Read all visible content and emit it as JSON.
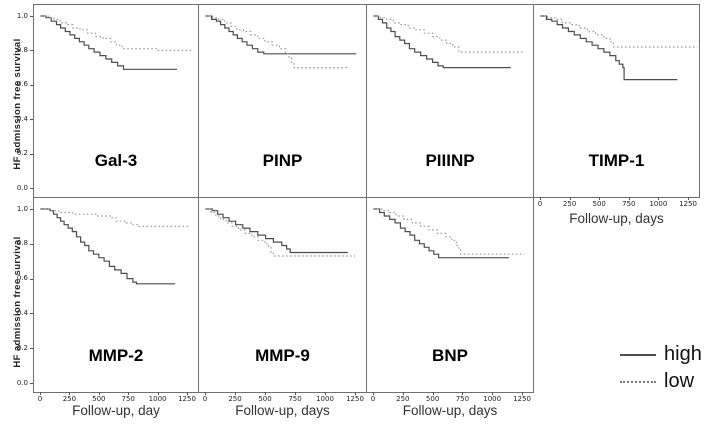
{
  "figure": {
    "ylabel": "HF admission free survival",
    "x_ticks": [
      0,
      250,
      500,
      750,
      1000,
      1250
    ],
    "y_ticks": [
      1.0,
      0.8,
      0.6,
      0.4,
      0.2,
      0.0
    ],
    "colors": {
      "high": "#4d4d4d",
      "low": "#9c9c9c",
      "panel_border": "#6f6f6f"
    },
    "legend": {
      "high_label": "high",
      "low_label": "low"
    }
  },
  "chart_data": [
    {
      "type": "line",
      "step": true,
      "title": "Gal-3",
      "xlim": [
        0,
        1340
      ],
      "ylim": [
        0,
        1
      ],
      "show_x_ticks": false,
      "show_y_ticks": true,
      "series": [
        {
          "name": "high",
          "style": "solid",
          "points": [
            [
              0,
              1.0
            ],
            [
              50,
              0.99
            ],
            [
              95,
              0.97
            ],
            [
              140,
              0.95
            ],
            [
              175,
              0.93
            ],
            [
              215,
              0.91
            ],
            [
              255,
              0.89
            ],
            [
              295,
              0.87
            ],
            [
              335,
              0.85
            ],
            [
              375,
              0.83
            ],
            [
              415,
              0.81
            ],
            [
              460,
              0.79
            ],
            [
              510,
              0.77
            ],
            [
              560,
              0.75
            ],
            [
              610,
              0.73
            ],
            [
              660,
              0.71
            ],
            [
              710,
              0.69
            ],
            [
              1165,
              0.69
            ]
          ]
        },
        {
          "name": "low",
          "style": "dotted",
          "points": [
            [
              0,
              1.0
            ],
            [
              70,
              0.99
            ],
            [
              120,
              0.98
            ],
            [
              170,
              0.96
            ],
            [
              225,
              0.95
            ],
            [
              280,
              0.93
            ],
            [
              340,
              0.92
            ],
            [
              405,
              0.9
            ],
            [
              470,
              0.88
            ],
            [
              535,
              0.87
            ],
            [
              600,
              0.85
            ],
            [
              650,
              0.83
            ],
            [
              700,
              0.81
            ],
            [
              1000,
              0.8
            ],
            [
              1300,
              0.8
            ]
          ]
        }
      ]
    },
    {
      "type": "line",
      "step": true,
      "title": "PINP",
      "xlim": [
        0,
        1340
      ],
      "ylim": [
        0,
        1
      ],
      "show_x_ticks": false,
      "show_y_ticks": false,
      "series": [
        {
          "name": "high",
          "style": "solid",
          "points": [
            [
              0,
              1.0
            ],
            [
              55,
              0.98
            ],
            [
              95,
              0.97
            ],
            [
              130,
              0.95
            ],
            [
              165,
              0.93
            ],
            [
              200,
              0.91
            ],
            [
              235,
              0.89
            ],
            [
              270,
              0.87
            ],
            [
              310,
              0.85
            ],
            [
              350,
              0.83
            ],
            [
              395,
              0.81
            ],
            [
              440,
              0.79
            ],
            [
              490,
              0.78
            ],
            [
              1260,
              0.78
            ]
          ]
        },
        {
          "name": "low",
          "style": "dotted",
          "points": [
            [
              0,
              1.0
            ],
            [
              65,
              0.99
            ],
            [
              115,
              0.98
            ],
            [
              165,
              0.96
            ],
            [
              215,
              0.94
            ],
            [
              265,
              0.92
            ],
            [
              320,
              0.91
            ],
            [
              380,
              0.89
            ],
            [
              440,
              0.87
            ],
            [
              500,
              0.85
            ],
            [
              560,
              0.83
            ],
            [
              620,
              0.81
            ],
            [
              670,
              0.78
            ],
            [
              700,
              0.76
            ],
            [
              720,
              0.73
            ],
            [
              740,
              0.7
            ],
            [
              1190,
              0.7
            ]
          ]
        }
      ]
    },
    {
      "type": "line",
      "step": true,
      "title": "PIIINP",
      "xlim": [
        0,
        1340
      ],
      "ylim": [
        0,
        1
      ],
      "show_x_ticks": false,
      "show_y_ticks": false,
      "series": [
        {
          "name": "high",
          "style": "solid",
          "points": [
            [
              0,
              1.0
            ],
            [
              45,
              0.98
            ],
            [
              80,
              0.96
            ],
            [
              115,
              0.93
            ],
            [
              150,
              0.91
            ],
            [
              185,
              0.88
            ],
            [
              225,
              0.86
            ],
            [
              265,
              0.84
            ],
            [
              305,
              0.81
            ],
            [
              350,
              0.79
            ],
            [
              400,
              0.77
            ],
            [
              450,
              0.75
            ],
            [
              500,
              0.73
            ],
            [
              545,
              0.71
            ],
            [
              590,
              0.7
            ],
            [
              1155,
              0.7
            ]
          ]
        },
        {
          "name": "low",
          "style": "dotted",
          "points": [
            [
              0,
              1.0
            ],
            [
              60,
              0.99
            ],
            [
              115,
              0.98
            ],
            [
              170,
              0.96
            ],
            [
              230,
              0.95
            ],
            [
              295,
              0.93
            ],
            [
              360,
              0.92
            ],
            [
              430,
              0.9
            ],
            [
              500,
              0.88
            ],
            [
              560,
              0.86
            ],
            [
              620,
              0.84
            ],
            [
              670,
              0.82
            ],
            [
              720,
              0.79
            ],
            [
              1260,
              0.79
            ]
          ]
        }
      ]
    },
    {
      "type": "line",
      "step": true,
      "title": "TIMP-1",
      "xlabel": "Follow-up, days",
      "xlim": [
        0,
        1340
      ],
      "ylim": [
        0,
        1
      ],
      "show_x_ticks": true,
      "show_y_ticks": false,
      "series": [
        {
          "name": "high",
          "style": "solid",
          "points": [
            [
              0,
              1.0
            ],
            [
              55,
              0.98
            ],
            [
              100,
              0.97
            ],
            [
              145,
              0.95
            ],
            [
              190,
              0.93
            ],
            [
              240,
              0.91
            ],
            [
              290,
              0.89
            ],
            [
              340,
              0.87
            ],
            [
              390,
              0.85
            ],
            [
              440,
              0.83
            ],
            [
              490,
              0.81
            ],
            [
              540,
              0.79
            ],
            [
              590,
              0.77
            ],
            [
              640,
              0.74
            ],
            [
              670,
              0.72
            ],
            [
              700,
              0.7
            ],
            [
              710,
              0.63
            ],
            [
              1160,
              0.63
            ]
          ]
        },
        {
          "name": "low",
          "style": "dotted",
          "points": [
            [
              0,
              1.0
            ],
            [
              65,
              0.99
            ],
            [
              125,
              0.98
            ],
            [
              190,
              0.96
            ],
            [
              260,
              0.95
            ],
            [
              330,
              0.93
            ],
            [
              400,
              0.91
            ],
            [
              470,
              0.89
            ],
            [
              540,
              0.87
            ],
            [
              590,
              0.85
            ],
            [
              620,
              0.82
            ],
            [
              1330,
              0.82
            ]
          ]
        }
      ]
    },
    {
      "type": "line",
      "step": true,
      "title": "MMP-2",
      "xlabel": "Follow-up, day",
      "xlim": [
        0,
        1340
      ],
      "ylim": [
        0,
        1
      ],
      "show_x_ticks": true,
      "show_y_ticks": true,
      "series": [
        {
          "name": "high",
          "style": "solid",
          "points": [
            [
              0,
              1.0
            ],
            [
              85,
              0.99
            ],
            [
              115,
              0.97
            ],
            [
              145,
              0.95
            ],
            [
              175,
              0.93
            ],
            [
              205,
              0.91
            ],
            [
              240,
              0.89
            ],
            [
              275,
              0.87
            ],
            [
              310,
              0.84
            ],
            [
              345,
              0.81
            ],
            [
              380,
              0.79
            ],
            [
              415,
              0.76
            ],
            [
              455,
              0.74
            ],
            [
              500,
              0.72
            ],
            [
              545,
              0.7
            ],
            [
              590,
              0.67
            ],
            [
              635,
              0.65
            ],
            [
              690,
              0.63
            ],
            [
              740,
              0.6
            ],
            [
              790,
              0.58
            ],
            [
              820,
              0.57
            ],
            [
              1150,
              0.57
            ]
          ]
        },
        {
          "name": "low",
          "style": "dotted",
          "points": [
            [
              0,
              1.0
            ],
            [
              95,
              0.99
            ],
            [
              160,
              0.98
            ],
            [
              280,
              0.97
            ],
            [
              480,
              0.96
            ],
            [
              600,
              0.95
            ],
            [
              650,
              0.93
            ],
            [
              720,
              0.92
            ],
            [
              790,
              0.91
            ],
            [
              830,
              0.9
            ],
            [
              1260,
              0.9
            ]
          ]
        }
      ]
    },
    {
      "type": "line",
      "step": true,
      "title": "MMP-9",
      "xlabel": "Follow-up, days",
      "xlim": [
        0,
        1340
      ],
      "ylim": [
        0,
        1
      ],
      "show_x_ticks": true,
      "show_y_ticks": false,
      "series": [
        {
          "name": "high",
          "style": "solid",
          "points": [
            [
              0,
              1.0
            ],
            [
              60,
              0.99
            ],
            [
              105,
              0.97
            ],
            [
              150,
              0.95
            ],
            [
              200,
              0.93
            ],
            [
              255,
              0.91
            ],
            [
              315,
              0.89
            ],
            [
              375,
              0.87
            ],
            [
              440,
              0.85
            ],
            [
              505,
              0.83
            ],
            [
              570,
              0.81
            ],
            [
              640,
              0.79
            ],
            [
              680,
              0.77
            ],
            [
              710,
              0.75
            ],
            [
              1190,
              0.75
            ]
          ]
        },
        {
          "name": "low",
          "style": "dotted",
          "points": [
            [
              0,
              1.0
            ],
            [
              50,
              0.98
            ],
            [
              90,
              0.96
            ],
            [
              130,
              0.94
            ],
            [
              175,
              0.92
            ],
            [
              225,
              0.9
            ],
            [
              280,
              0.88
            ],
            [
              335,
              0.86
            ],
            [
              390,
              0.84
            ],
            [
              445,
              0.82
            ],
            [
              500,
              0.8
            ],
            [
              530,
              0.78
            ],
            [
              550,
              0.75
            ],
            [
              570,
              0.73
            ],
            [
              1250,
              0.73
            ]
          ]
        }
      ]
    },
    {
      "type": "line",
      "step": true,
      "title": "BNP",
      "xlabel": "Follow-up, days",
      "xlim": [
        0,
        1340
      ],
      "ylim": [
        0,
        1
      ],
      "show_x_ticks": true,
      "show_y_ticks": false,
      "series": [
        {
          "name": "high",
          "style": "solid",
          "points": [
            [
              0,
              1.0
            ],
            [
              55,
              0.98
            ],
            [
              95,
              0.96
            ],
            [
              140,
              0.94
            ],
            [
              185,
              0.92
            ],
            [
              230,
              0.89
            ],
            [
              270,
              0.87
            ],
            [
              310,
              0.85
            ],
            [
              350,
              0.82
            ],
            [
              390,
              0.8
            ],
            [
              430,
              0.78
            ],
            [
              470,
              0.76
            ],
            [
              510,
              0.74
            ],
            [
              550,
              0.72
            ],
            [
              1140,
              0.72
            ]
          ]
        },
        {
          "name": "low",
          "style": "dotted",
          "points": [
            [
              0,
              1.0
            ],
            [
              75,
              0.99
            ],
            [
              135,
              0.98
            ],
            [
              195,
              0.96
            ],
            [
              260,
              0.94
            ],
            [
              330,
              0.92
            ],
            [
              400,
              0.9
            ],
            [
              470,
              0.88
            ],
            [
              540,
              0.86
            ],
            [
              610,
              0.84
            ],
            [
              660,
              0.82
            ],
            [
              700,
              0.79
            ],
            [
              720,
              0.77
            ],
            [
              735,
              0.74
            ],
            [
              1270,
              0.74
            ]
          ]
        }
      ]
    }
  ]
}
